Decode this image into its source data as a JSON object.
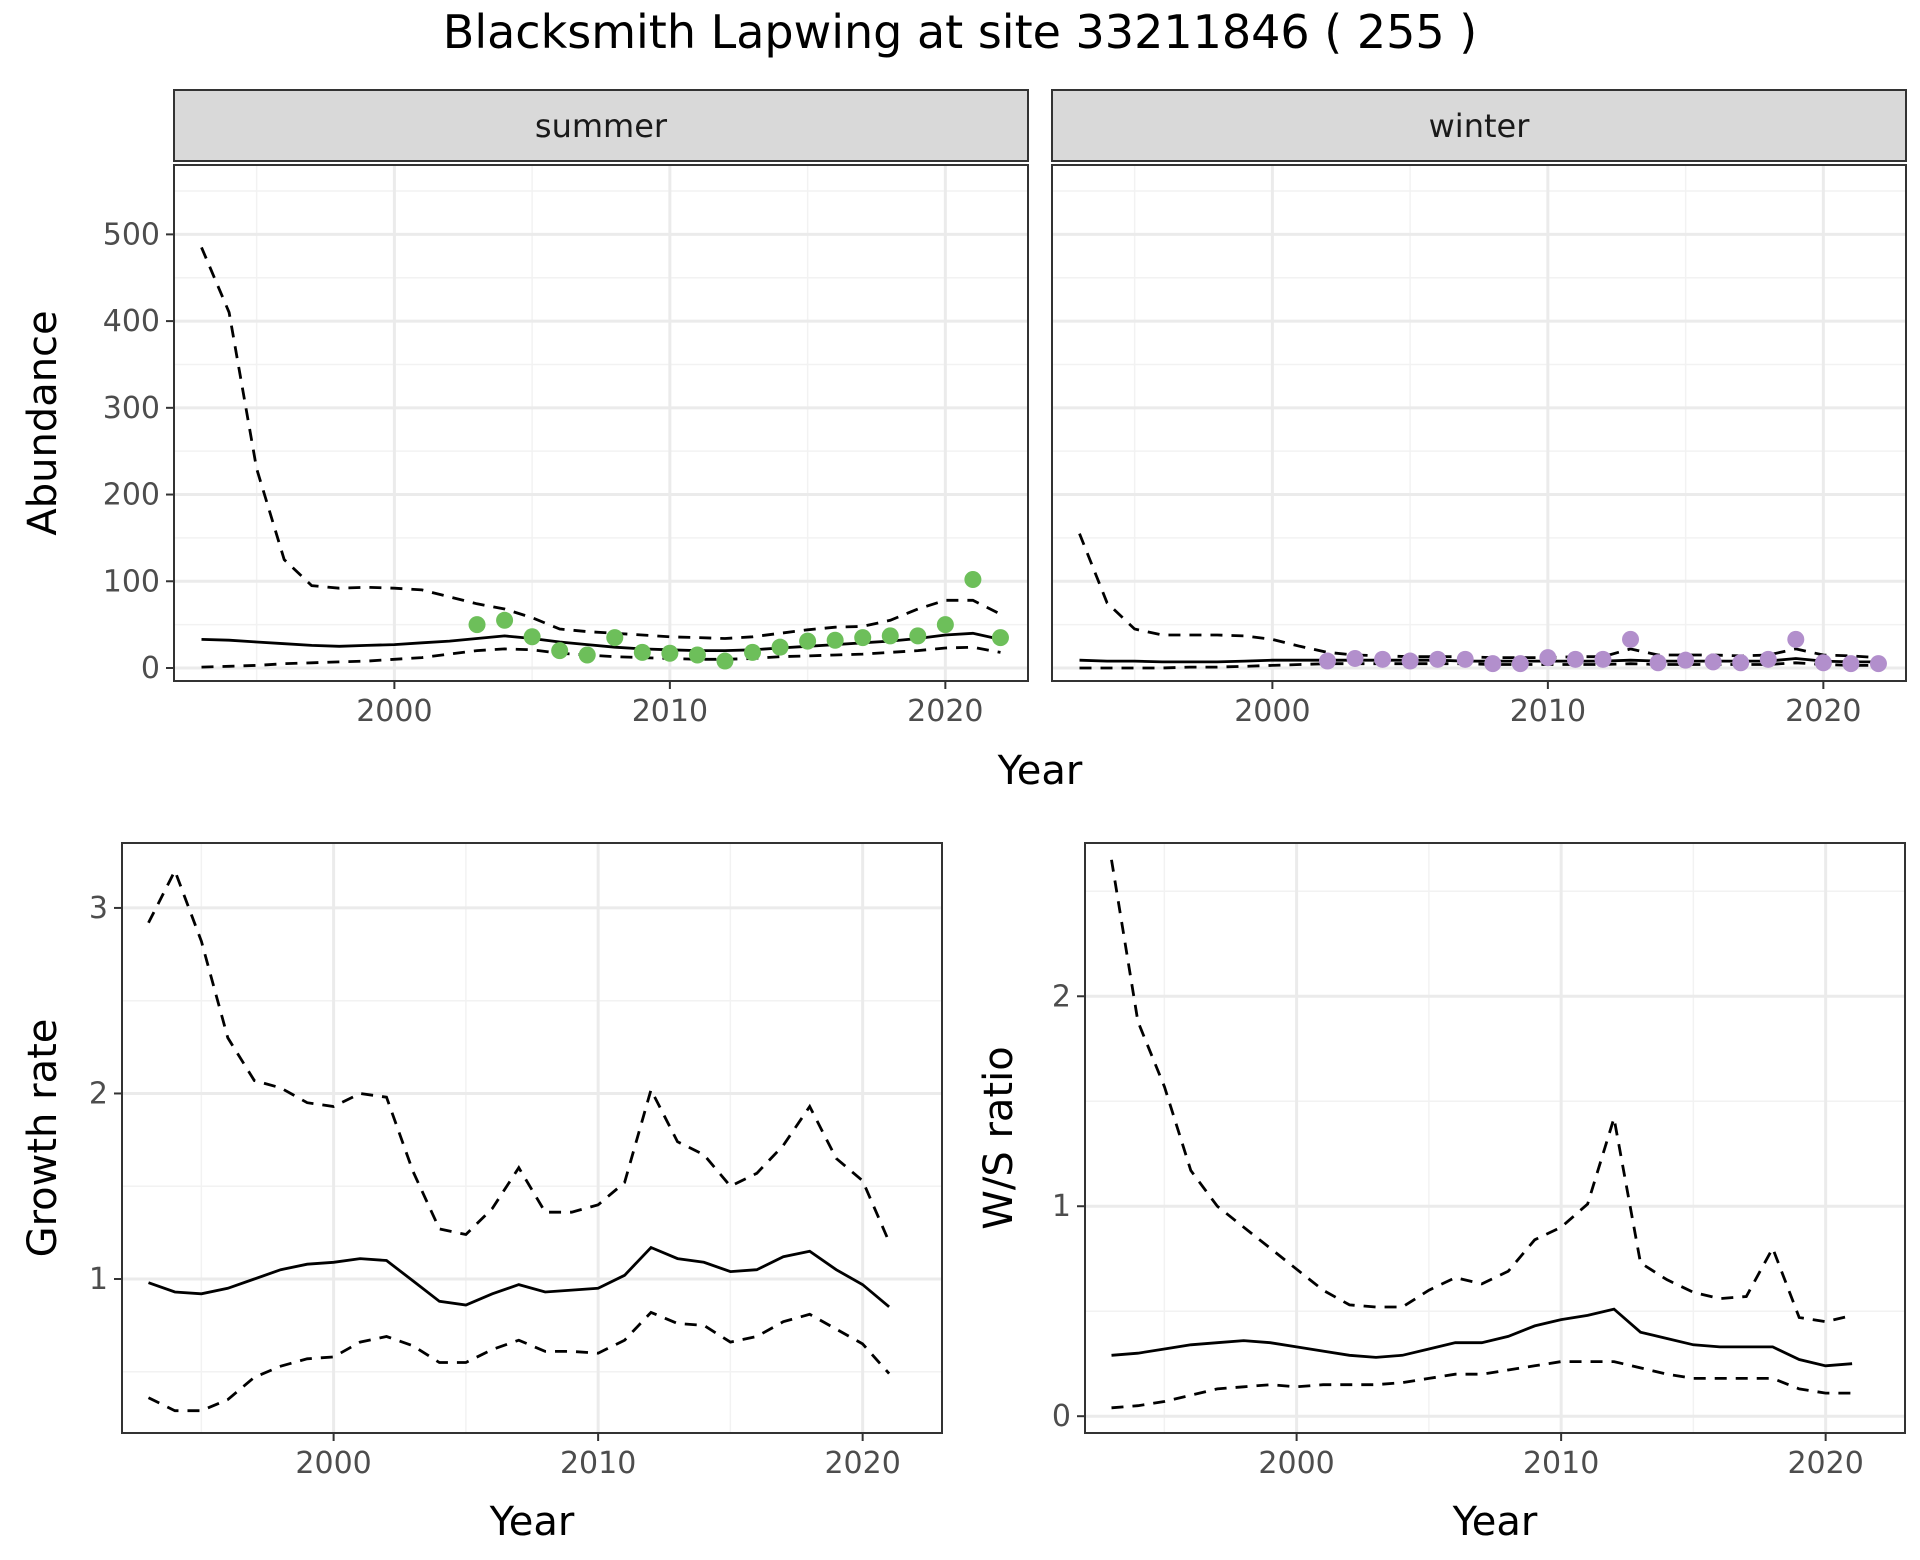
{
  "title": "Blacksmith Lapwing at site 33211846 ( 255 )",
  "chart_data": [
    {
      "type": "line",
      "panel": "abundance",
      "facets": [
        "summer",
        "winter"
      ],
      "xlabel": "Year",
      "ylabel": "Abundance",
      "xlim": [
        1992,
        2023
      ],
      "ylim": [
        -15,
        580
      ],
      "xticks": [
        2000,
        2010,
        2020
      ],
      "yticks": [
        0,
        100,
        200,
        300,
        400,
        500
      ],
      "grid": true,
      "series": {
        "summer": {
          "point_color": "#6dbf5a",
          "mean": {
            "x": [
              1993,
              1994,
              1995,
              1996,
              1997,
              1998,
              1999,
              2000,
              2001,
              2002,
              2003,
              2004,
              2005,
              2006,
              2007,
              2008,
              2009,
              2010,
              2011,
              2012,
              2013,
              2014,
              2015,
              2016,
              2017,
              2018,
              2019,
              2020,
              2021,
              2022
            ],
            "y": [
              33,
              32,
              30,
              28,
              26,
              25,
              26,
              27,
              29,
              31,
              34,
              37,
              34,
              30,
              27,
              24,
              22,
              21,
              20,
              20,
              21,
              23,
              25,
              27,
              29,
              31,
              34,
              38,
              40,
              33
            ]
          },
          "upper": {
            "x": [
              1993,
              1994,
              1995,
              1996,
              1997,
              1998,
              1999,
              2000,
              2001,
              2002,
              2003,
              2004,
              2005,
              2006,
              2007,
              2008,
              2009,
              2010,
              2011,
              2012,
              2013,
              2014,
              2015,
              2016,
              2017,
              2018,
              2019,
              2020,
              2021,
              2022
            ],
            "y": [
              485,
              410,
              230,
              125,
              95,
              92,
              93,
              92,
              90,
              82,
              74,
              68,
              58,
              45,
              42,
              40,
              38,
              36,
              35,
              34,
              36,
              40,
              44,
              47,
              48,
              55,
              68,
              78,
              78,
              62
            ]
          },
          "lower": {
            "x": [
              1993,
              1994,
              1995,
              1996,
              1997,
              1998,
              1999,
              2000,
              2001,
              2002,
              2003,
              2004,
              2005,
              2006,
              2007,
              2008,
              2009,
              2010,
              2011,
              2012,
              2013,
              2014,
              2015,
              2016,
              2017,
              2018,
              2019,
              2020,
              2021,
              2022
            ],
            "y": [
              1,
              2,
              3,
              5,
              6,
              7,
              8,
              10,
              12,
              16,
              20,
              22,
              21,
              17,
              15,
              13,
              12,
              11,
              10,
              10,
              11,
              13,
              14,
              15,
              16,
              18,
              20,
              23,
              24,
              18
            ]
          },
          "observed": {
            "x": [
              2003,
              2004,
              2005,
              2006,
              2007,
              2008,
              2009,
              2010,
              2011,
              2012,
              2013,
              2014,
              2015,
              2016,
              2017,
              2018,
              2019,
              2020,
              2021,
              2022
            ],
            "y": [
              50,
              55,
              36,
              20,
              15,
              35,
              18,
              17,
              15,
              8,
              18,
              24,
              31,
              32,
              35,
              37,
              37,
              50,
              102,
              35
            ]
          }
        },
        "winter": {
          "point_color": "#b28fcc",
          "mean": {
            "x": [
              1993,
              1994,
              1995,
              1996,
              1997,
              1998,
              1999,
              2000,
              2001,
              2002,
              2003,
              2004,
              2005,
              2006,
              2007,
              2008,
              2009,
              2010,
              2011,
              2012,
              2013,
              2014,
              2015,
              2016,
              2017,
              2018,
              2019,
              2020,
              2021,
              2022
            ],
            "y": [
              9,
              8,
              8,
              7,
              7,
              7,
              8,
              9,
              9,
              9,
              9,
              9,
              9,
              9,
              8,
              8,
              8,
              8,
              8,
              8,
              9,
              8,
              8,
              8,
              8,
              8,
              11,
              8,
              7,
              7
            ]
          },
          "upper": {
            "x": [
              1993,
              1994,
              1995,
              1996,
              1997,
              1998,
              1999,
              2000,
              2001,
              2002,
              2003,
              2004,
              2005,
              2006,
              2007,
              2008,
              2009,
              2010,
              2011,
              2012,
              2013,
              2014,
              2015,
              2016,
              2017,
              2018,
              2019,
              2020,
              2021,
              2022
            ],
            "y": [
              155,
              75,
              45,
              38,
              38,
              38,
              37,
              33,
              25,
              18,
              15,
              14,
              13,
              13,
              13,
              12,
              12,
              12,
              13,
              13,
              22,
              15,
              15,
              15,
              14,
              15,
              22,
              15,
              14,
              12
            ]
          },
          "lower": {
            "x": [
              1993,
              1994,
              1995,
              1996,
              1997,
              1998,
              1999,
              2000,
              2001,
              2002,
              2003,
              2004,
              2005,
              2006,
              2007,
              2008,
              2009,
              2010,
              2011,
              2012,
              2013,
              2014,
              2015,
              2016,
              2017,
              2018,
              2019,
              2020,
              2021,
              2022
            ],
            "y": [
              0,
              0,
              0,
              0,
              1,
              1,
              2,
              3,
              4,
              5,
              5,
              5,
              5,
              5,
              5,
              4,
              4,
              4,
              4,
              4,
              5,
              4,
              4,
              4,
              4,
              4,
              6,
              4,
              3,
              3
            ]
          },
          "observed": {
            "x": [
              2002,
              2003,
              2004,
              2005,
              2006,
              2007,
              2008,
              2009,
              2010,
              2011,
              2012,
              2013,
              2014,
              2015,
              2016,
              2017,
              2018,
              2019,
              2020,
              2021,
              2022
            ],
            "y": [
              8,
              11,
              10,
              8,
              10,
              10,
              5,
              5,
              12,
              10,
              10,
              33,
              6,
              9,
              7,
              6,
              10,
              33,
              6,
              5,
              5
            ]
          }
        }
      }
    },
    {
      "type": "line",
      "panel": "growth-rate",
      "xlabel": "Year",
      "ylabel": "Growth rate",
      "xlim": [
        1992,
        2023
      ],
      "ylim": [
        0.17,
        3.35
      ],
      "xticks": [
        2000,
        2010,
        2020
      ],
      "yticks": [
        1,
        2,
        3
      ],
      "grid": true,
      "series": {
        "mean": {
          "x": [
            1993,
            1994,
            1995,
            1996,
            1997,
            1998,
            1999,
            2000,
            2001,
            2002,
            2003,
            2004,
            2005,
            2006,
            2007,
            2008,
            2009,
            2010,
            2011,
            2012,
            2013,
            2014,
            2015,
            2016,
            2017,
            2018,
            2019,
            2020,
            2021
          ],
          "y": [
            0.98,
            0.93,
            0.92,
            0.95,
            1.0,
            1.05,
            1.08,
            1.09,
            1.11,
            1.1,
            0.99,
            0.88,
            0.86,
            0.92,
            0.97,
            0.93,
            0.94,
            0.95,
            1.02,
            1.17,
            1.11,
            1.09,
            1.04,
            1.05,
            1.12,
            1.15,
            1.05,
            0.97,
            0.85
          ]
        },
        "upper": {
          "x": [
            1993,
            1994,
            1995,
            1996,
            1997,
            1998,
            1999,
            2000,
            2001,
            2002,
            2003,
            2004,
            2005,
            2006,
            2007,
            2008,
            2009,
            2010,
            2011,
            2012,
            2013,
            2014,
            2015,
            2016,
            2017,
            2018,
            2019,
            2020,
            2021
          ],
          "y": [
            2.92,
            3.2,
            2.82,
            2.3,
            2.07,
            2.03,
            1.95,
            1.93,
            2.0,
            1.98,
            1.58,
            1.27,
            1.24,
            1.38,
            1.6,
            1.36,
            1.36,
            1.4,
            1.52,
            2.02,
            1.74,
            1.67,
            1.5,
            1.57,
            1.72,
            1.93,
            1.65,
            1.53,
            1.2
          ]
        },
        "lower": {
          "x": [
            1993,
            1994,
            1995,
            1996,
            1997,
            1998,
            1999,
            2000,
            2001,
            2002,
            2003,
            2004,
            2005,
            2006,
            2007,
            2008,
            2009,
            2010,
            2011,
            2012,
            2013,
            2014,
            2015,
            2016,
            2017,
            2018,
            2019,
            2020,
            2021
          ],
          "y": [
            0.36,
            0.29,
            0.29,
            0.35,
            0.47,
            0.53,
            0.57,
            0.58,
            0.66,
            0.69,
            0.64,
            0.55,
            0.55,
            0.62,
            0.67,
            0.61,
            0.61,
            0.6,
            0.67,
            0.82,
            0.76,
            0.75,
            0.66,
            0.69,
            0.77,
            0.81,
            0.73,
            0.65,
            0.49
          ]
        }
      }
    },
    {
      "type": "line",
      "panel": "ws-ratio",
      "xlabel": "Year",
      "ylabel": "W/S ratio",
      "xlim": [
        1992,
        2023
      ],
      "ylim": [
        -0.08,
        2.73
      ],
      "xticks": [
        2000,
        2010,
        2020
      ],
      "yticks": [
        0,
        1,
        2
      ],
      "grid": true,
      "series": {
        "mean": {
          "x": [
            1993,
            1994,
            1995,
            1996,
            1997,
            1998,
            1999,
            2000,
            2001,
            2002,
            2003,
            2004,
            2005,
            2006,
            2007,
            2008,
            2009,
            2010,
            2011,
            2012,
            2013,
            2014,
            2015,
            2016,
            2017,
            2018,
            2019,
            2020,
            2021
          ],
          "y": [
            0.29,
            0.3,
            0.32,
            0.34,
            0.35,
            0.36,
            0.35,
            0.33,
            0.31,
            0.29,
            0.28,
            0.29,
            0.32,
            0.35,
            0.35,
            0.38,
            0.43,
            0.46,
            0.48,
            0.51,
            0.4,
            0.37,
            0.34,
            0.33,
            0.33,
            0.33,
            0.27,
            0.24,
            0.25
          ]
        },
        "upper": {
          "x": [
            1993,
            1994,
            1995,
            1996,
            1997,
            1998,
            1999,
            2000,
            2001,
            2002,
            2003,
            2004,
            2005,
            2006,
            2007,
            2008,
            2009,
            2010,
            2011,
            2012,
            2013,
            2014,
            2015,
            2016,
            2017,
            2018,
            2019,
            2020,
            2021
          ],
          "y": [
            2.65,
            1.88,
            1.57,
            1.17,
            1.0,
            0.9,
            0.8,
            0.7,
            0.6,
            0.53,
            0.52,
            0.52,
            0.6,
            0.66,
            0.63,
            0.69,
            0.84,
            0.9,
            1.01,
            1.42,
            0.73,
            0.65,
            0.59,
            0.56,
            0.57,
            0.8,
            0.47,
            0.45,
            0.48
          ]
        },
        "lower": {
          "x": [
            1993,
            1994,
            1995,
            1996,
            1997,
            1998,
            1999,
            2000,
            2001,
            2002,
            2003,
            2004,
            2005,
            2006,
            2007,
            2008,
            2009,
            2010,
            2011,
            2012,
            2013,
            2014,
            2015,
            2016,
            2017,
            2018,
            2019,
            2020,
            2021
          ],
          "y": [
            0.04,
            0.05,
            0.07,
            0.1,
            0.13,
            0.14,
            0.15,
            0.14,
            0.15,
            0.15,
            0.15,
            0.16,
            0.18,
            0.2,
            0.2,
            0.22,
            0.24,
            0.26,
            0.26,
            0.26,
            0.23,
            0.2,
            0.18,
            0.18,
            0.18,
            0.18,
            0.13,
            0.11,
            0.11
          ]
        }
      }
    }
  ]
}
